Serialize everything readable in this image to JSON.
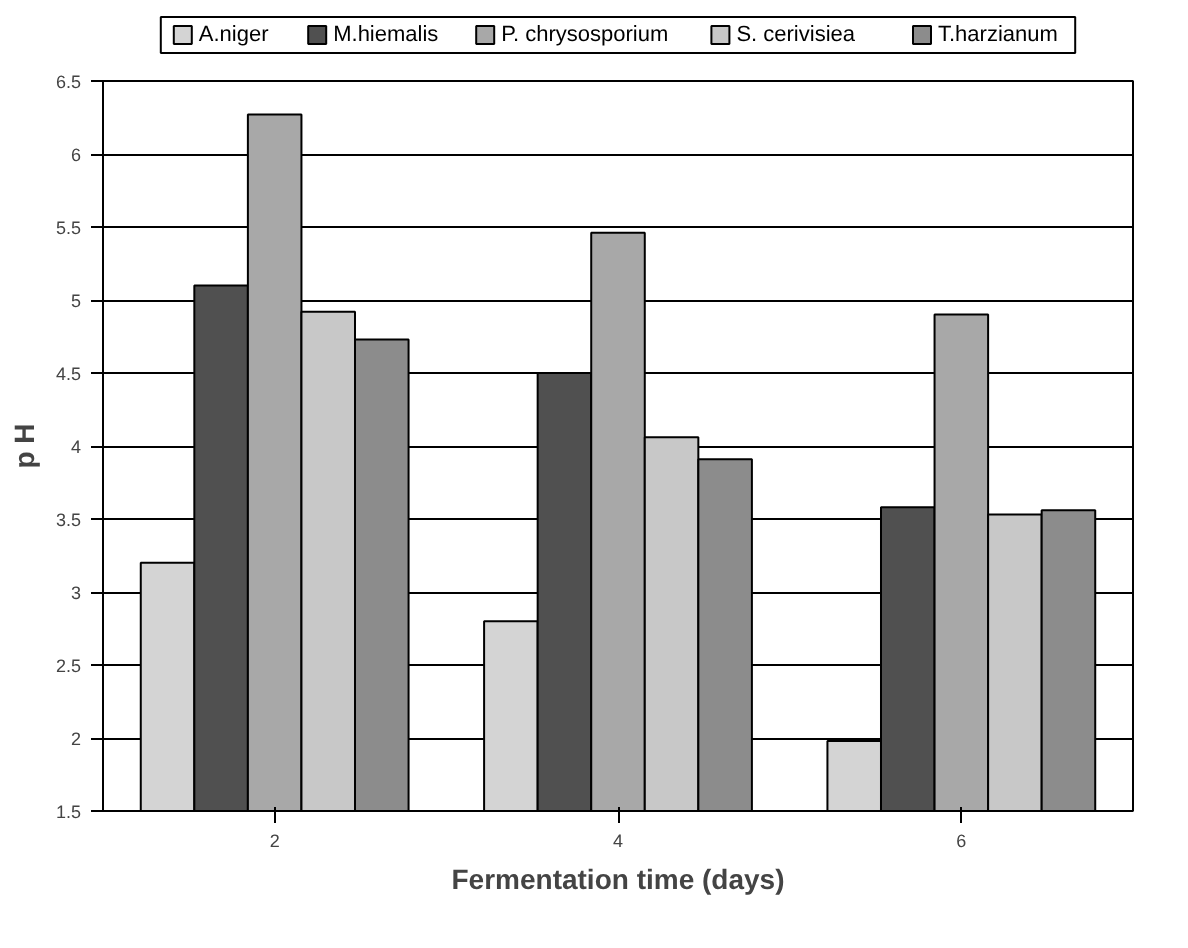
{
  "chart_data": {
    "type": "bar",
    "xlabel": "Fermentation time (days)",
    "ylabel": "p H",
    "categories": [
      "2",
      "4",
      "6"
    ],
    "series": [
      {
        "name": "A.niger",
        "color": "#d4d4d4",
        "values": [
          3.2,
          2.8,
          1.98
        ]
      },
      {
        "name": "M.hiemalis",
        "color": "#505050",
        "values": [
          5.1,
          4.5,
          3.58
        ]
      },
      {
        "name": "P. chrysosporium",
        "color": "#a8a8a8",
        "values": [
          6.27,
          5.46,
          4.9
        ]
      },
      {
        "name": "S. cerivisiea",
        "color": "#c8c8c8",
        "values": [
          4.92,
          4.06,
          3.53
        ]
      },
      {
        "name": "T.harzianum",
        "color": "#8c8c8c",
        "values": [
          4.73,
          3.91,
          3.56
        ]
      }
    ],
    "ylim": [
      1.5,
      6.5
    ],
    "yticks": [
      1.5,
      2,
      2.5,
      3,
      3.5,
      4,
      4.5,
      5,
      5.5,
      6,
      6.5
    ],
    "grid": "y",
    "legend": "top"
  }
}
